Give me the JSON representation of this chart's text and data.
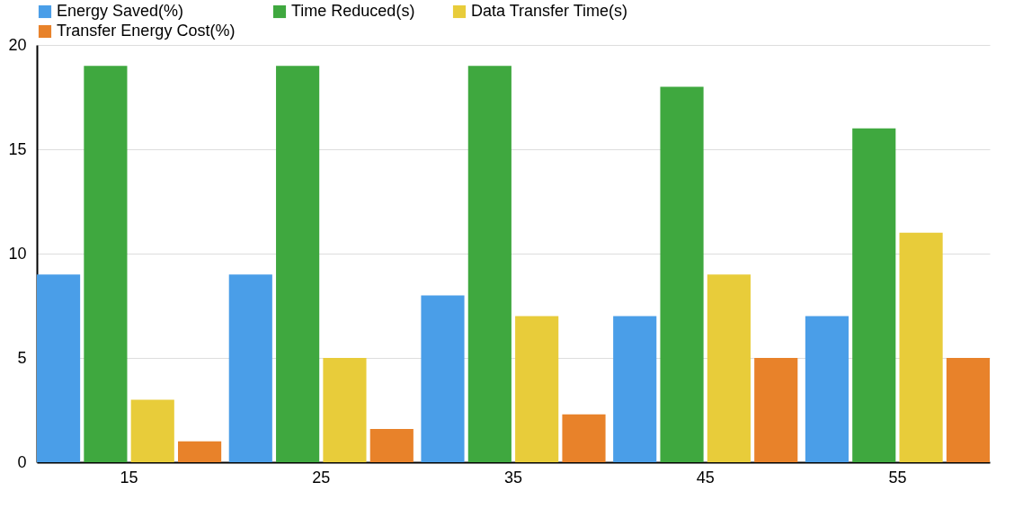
{
  "chart_data": {
    "type": "bar",
    "categories": [
      "15",
      "25",
      "35",
      "45",
      "55"
    ],
    "series": [
      {
        "name": "Energy Saved(%)",
        "color": "#4a9ee8",
        "values": [
          9,
          9,
          8,
          7,
          7
        ]
      },
      {
        "name": "Time Reduced(s)",
        "color": "#3fa83f",
        "values": [
          19,
          19,
          19,
          18,
          16
        ]
      },
      {
        "name": "Data Transfer Time(s)",
        "color": "#e8cc3a",
        "values": [
          3,
          5,
          7,
          9,
          11
        ]
      },
      {
        "name": "Transfer Energy Cost(%)",
        "color": "#e8822a",
        "values": [
          1,
          1.6,
          2.3,
          5,
          5
        ]
      }
    ],
    "ylim": [
      0,
      20
    ],
    "yticks": [
      0,
      5,
      10,
      15,
      20
    ],
    "grid": "y",
    "legend": "top left"
  }
}
